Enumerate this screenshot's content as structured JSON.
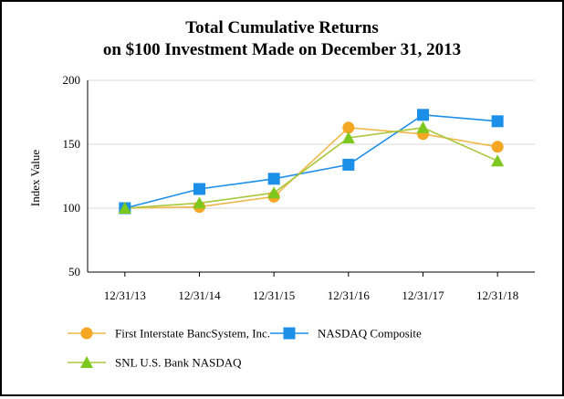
{
  "chart_data": {
    "type": "line",
    "title": [
      "Total Cumulative Returns",
      "on $100 Investment Made on December 31, 2013"
    ],
    "xlabel": "",
    "ylabel": "Index Value",
    "ylim": [
      50,
      200
    ],
    "yticks": [
      "50",
      "100",
      "150",
      "200"
    ],
    "categories": [
      "12/31/13",
      "12/31/14",
      "12/31/15",
      "12/31/16",
      "12/31/17",
      "12/31/18"
    ],
    "grid": true,
    "legend_position": "bottom",
    "series": [
      {
        "name": "First Interstate BancSystem, Inc.",
        "marker": "circle",
        "color": "#f5a623",
        "line_color": "#f0b84a",
        "values": [
          100,
          101,
          109,
          163,
          158,
          148
        ]
      },
      {
        "name": "NASDAQ Composite",
        "marker": "square",
        "color": "#1c8fe8",
        "line_color": "#1c8fe8",
        "values": [
          100,
          115,
          123,
          134,
          173,
          168
        ]
      },
      {
        "name": "SNL U.S. Bank NASDAQ",
        "marker": "triangle",
        "color": "#7dc81e",
        "line_color": "#a8c83a",
        "values": [
          100,
          104,
          112,
          155,
          163,
          137
        ]
      }
    ]
  }
}
